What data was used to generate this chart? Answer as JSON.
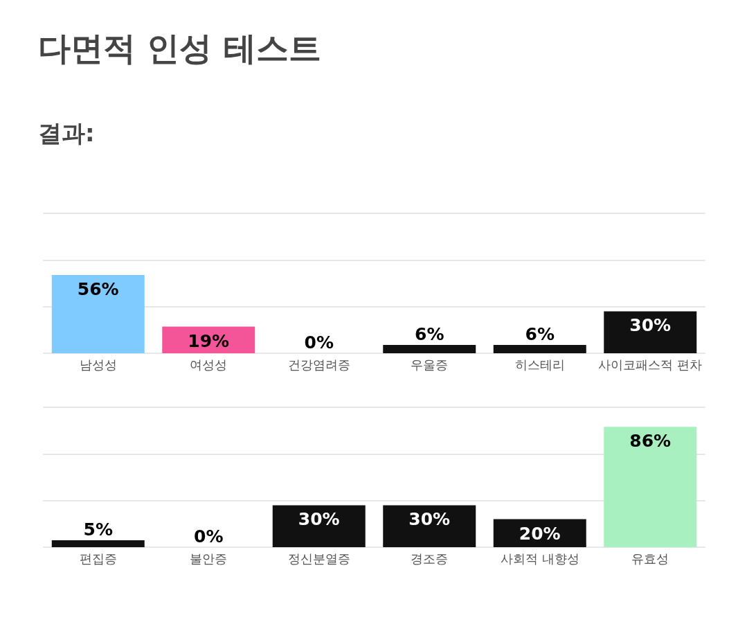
{
  "chart_data": [
    {
      "type": "bar",
      "title": "다면적 인성 테스트",
      "subtitle": "결과:",
      "categories": [
        "남성성",
        "여성성",
        "건강염려증",
        "우울증",
        "히스테리",
        "사이코패스적 편차"
      ],
      "values": [
        56,
        19,
        0,
        6,
        6,
        30
      ],
      "colors": [
        "#7fcaff",
        "#f45598",
        "#111111",
        "#111111",
        "#111111",
        "#111111"
      ],
      "value_labels": [
        "56%",
        "19%",
        "0%",
        "6%",
        "6%",
        "30%"
      ],
      "ylim": [
        0,
        100
      ],
      "yticks": [
        {
          "value": 0,
          "label": null
        },
        {
          "value": 33.3,
          "label": null
        },
        {
          "value": 66.7,
          "label": null
        },
        {
          "value": 100,
          "label": null
        }
      ],
      "grid": "y",
      "tick_labels": "x"
    },
    {
      "type": "bar",
      "categories": [
        "편집증",
        "불안증",
        "정신분열증",
        "경조증",
        "사회적 내향성",
        "유효성"
      ],
      "values": [
        5,
        0,
        30,
        30,
        20,
        86
      ],
      "colors": [
        "#111111",
        "#111111",
        "#111111",
        "#111111",
        "#111111",
        "#a8f0c0"
      ],
      "value_labels": [
        "5%",
        "0%",
        "30%",
        "30%",
        "20%",
        "86%"
      ],
      "ylim": [
        0,
        100
      ],
      "yticks": [
        {
          "value": 0,
          "label": null
        },
        {
          "value": 33.3,
          "label": null
        },
        {
          "value": 66.7,
          "label": null
        },
        {
          "value": 100,
          "label": null
        }
      ],
      "grid": "y",
      "tick_labels": "x"
    }
  ]
}
